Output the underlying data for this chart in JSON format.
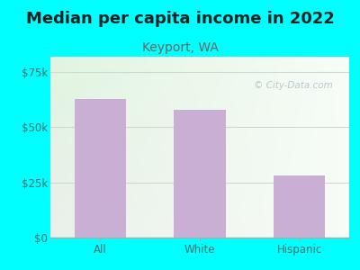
{
  "title": "Median per capita income in 2022",
  "subtitle": "Keyport, WA",
  "categories": [
    "All",
    "White",
    "Hispanic"
  ],
  "values": [
    63000,
    58000,
    28000
  ],
  "bar_color": "#c9afd4",
  "title_fontsize": 13,
  "subtitle_fontsize": 10,
  "subtitle_color": "#7a6060",
  "tick_color": "#4a7070",
  "yticks": [
    0,
    25000,
    50000,
    75000
  ],
  "ytick_labels": [
    "$0",
    "$25k",
    "$50k",
    "$75k"
  ],
  "ylim": [
    0,
    82000
  ],
  "background_outer": "#00ffff",
  "watermark": "City-Data.com",
  "watermark_color": "#b0c0c8",
  "grid_color": "#d0d8d0",
  "bottom_line_color": "#aaaaaa"
}
